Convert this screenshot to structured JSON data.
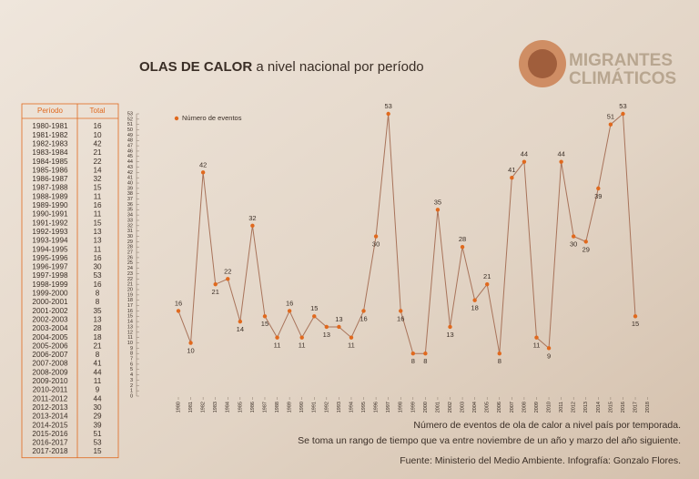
{
  "chart_data": {
    "type": "line",
    "title": [
      "OLAS DE CALOR",
      "a nivel nacional por período"
    ],
    "x": [
      1980,
      1981,
      1982,
      1983,
      1984,
      1985,
      1986,
      1987,
      1988,
      1989,
      1990,
      1991,
      1992,
      1993,
      1994,
      1995,
      1996,
      1997,
      1998,
      1999,
      2000,
      2001,
      2002,
      2003,
      2004,
      2005,
      2006,
      2007,
      2008,
      2009,
      2010,
      2011,
      2012,
      2013,
      2014,
      2015,
      2016,
      2017
    ],
    "series": [
      {
        "name": "Número de eventos",
        "color": "#e0691e",
        "line_color": "#a8735a",
        "values": [
          16,
          10,
          42,
          21,
          22,
          14,
          32,
          15,
          11,
          16,
          11,
          15,
          13,
          13,
          11,
          16,
          30,
          53,
          16,
          8,
          8,
          35,
          13,
          28,
          18,
          21,
          8,
          41,
          44,
          11,
          9,
          44,
          30,
          29,
          39,
          51,
          53,
          15
        ]
      }
    ],
    "xlim": [
      1980,
      2018
    ],
    "xticks": [
      1980,
      1981,
      1982,
      1983,
      1984,
      1985,
      1986,
      1987,
      1988,
      1989,
      1990,
      1991,
      1992,
      1993,
      1994,
      1995,
      1996,
      1997,
      1998,
      1999,
      2000,
      2001,
      2002,
      2003,
      2004,
      2005,
      2006,
      2007,
      2008,
      2009,
      2010,
      2011,
      2012,
      2013,
      2014,
      2015,
      2016,
      2017,
      2018
    ],
    "ylim": [
      0,
      53
    ],
    "yticks": [
      0,
      1,
      2,
      3,
      4,
      5,
      6,
      7,
      8,
      9,
      10,
      11,
      12,
      13,
      14,
      15,
      16,
      17,
      18,
      19,
      20,
      21,
      22,
      23,
      24,
      25,
      26,
      27,
      28,
      29,
      30,
      31,
      32,
      33,
      34,
      35,
      36,
      37,
      38,
      39,
      40,
      41,
      42,
      43,
      44,
      45,
      46,
      47,
      48,
      49,
      50,
      51,
      52,
      53
    ],
    "legend": "top-left"
  },
  "table": {
    "header": [
      "Período",
      "Total"
    ],
    "periods": [
      "1980-1981",
      "1981-1982",
      "1982-1983",
      "1983-1984",
      "1984-1985",
      "1985-1986",
      "1986-1987",
      "1987-1988",
      "1988-1989",
      "1989-1990",
      "1990-1991",
      "1991-1992",
      "1992-1993",
      "1993-1994",
      "1994-1995",
      "1995-1996",
      "1996-1997",
      "1997-1998",
      "1998-1999",
      "1999-2000",
      "2000-2001",
      "2001-2002",
      "2002-2003",
      "2003-2004",
      "2004-2005",
      "2005-2006",
      "2006-2007",
      "2007-2008",
      "2008-2009",
      "2009-2010",
      "2010-2011",
      "2011-2012",
      "2012-2013",
      "2013-2014",
      "2014-2015",
      "2015-2016",
      "2016-2017",
      "2017-2018"
    ]
  },
  "logo": [
    "MIGRANTES",
    "CLIMÁTICOS"
  ],
  "notes": [
    "Número de eventos de ola de calor a nivel país por temporada.",
    "Se toma un rango de tiempo que va entre noviembre de un año y marzo del año siguiente.",
    "Fuente: Ministerio del Medio Ambiente. Infografía: Gonzalo Flores."
  ]
}
